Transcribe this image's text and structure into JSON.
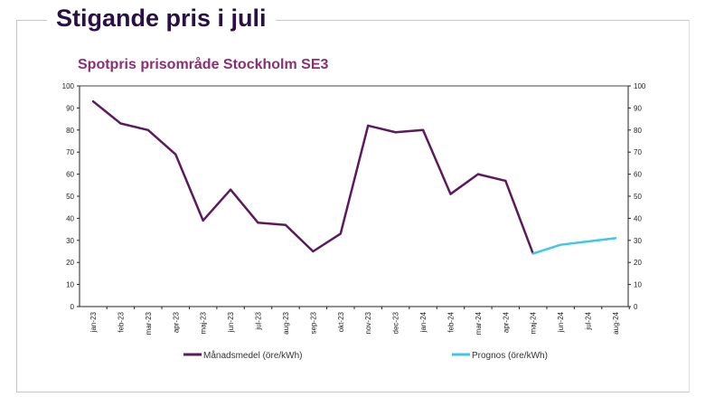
{
  "title": "Stigande pris i juli",
  "chart_data": {
    "type": "line",
    "title": "Spotpris prisområde Stockholm SE3",
    "categories": [
      "jan-23",
      "feb-23",
      "mar-23",
      "apr-23",
      "maj-23",
      "jun-23",
      "jul-23",
      "aug-23",
      "sep-23",
      "okt-23",
      "nov-23",
      "dec-23",
      "jan-24",
      "feb-24",
      "mar-24",
      "apr-24",
      "maj-24",
      "jun-24",
      "jul-24",
      "aug-24"
    ],
    "series": [
      {
        "name": "Månadsmedel (öre/kWh)",
        "color": "#5c1a5e",
        "values": [
          93,
          83,
          80,
          69,
          39,
          53,
          38,
          37,
          25,
          33,
          82,
          79,
          80,
          51,
          60,
          57,
          24,
          null,
          null,
          null
        ]
      },
      {
        "name": "Prognos (öre/kWh)",
        "color": "#3fc8e6",
        "values": [
          null,
          null,
          null,
          null,
          null,
          null,
          null,
          null,
          null,
          null,
          null,
          null,
          null,
          null,
          null,
          null,
          24,
          28,
          29.5,
          31
        ]
      }
    ],
    "yticks": [
      "0",
      "10",
      "20",
      "30",
      "40",
      "50",
      "60",
      "70",
      "80",
      "90",
      "100"
    ],
    "ylim": [
      0,
      100
    ],
    "xlabel": "",
    "ylabel": "",
    "grid": false,
    "legend": "bottom"
  }
}
